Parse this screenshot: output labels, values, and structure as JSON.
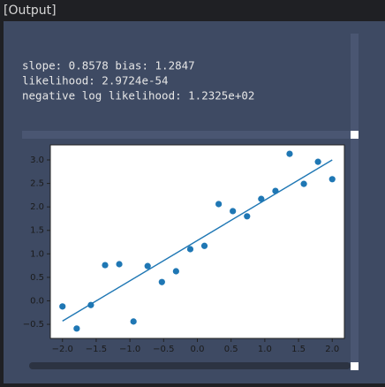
{
  "header": {
    "title": "[Output]"
  },
  "output": {
    "lines": [
      "slope: 0.8578 bias: 1.2847",
      "likelihood: 2.9724e-54",
      "negative log likelihood: 1.2325e+02"
    ]
  },
  "chart_data": {
    "type": "scatter",
    "xlim": [
      -2.18,
      2.18
    ],
    "ylim": [
      -0.8,
      3.32
    ],
    "xticks": [
      {
        "value": -2.0,
        "label": "−2.0"
      },
      {
        "value": -1.5,
        "label": "−1.5"
      },
      {
        "value": -1.0,
        "label": "−1.0"
      },
      {
        "value": -0.5,
        "label": "−0.5"
      },
      {
        "value": 0.0,
        "label": "0.0"
      },
      {
        "value": 0.5,
        "label": "0.5"
      },
      {
        "value": 1.0,
        "label": "1.0"
      },
      {
        "value": 1.5,
        "label": "1.5"
      },
      {
        "value": 2.0,
        "label": "2.0"
      }
    ],
    "yticks": [
      {
        "value": -0.5,
        "label": "−0.5"
      },
      {
        "value": 0.0,
        "label": "0.0"
      },
      {
        "value": 0.5,
        "label": "0.5"
      },
      {
        "value": 1.0,
        "label": "1.0"
      },
      {
        "value": 1.5,
        "label": "1.5"
      },
      {
        "value": 2.0,
        "label": "2.0"
      },
      {
        "value": 2.5,
        "label": "2.5"
      },
      {
        "value": 3.0,
        "label": "3.0"
      }
    ],
    "series": [
      {
        "kind": "points",
        "color": "#1f77b4",
        "x": [
          -2.0,
          -1.789,
          -1.579,
          -1.368,
          -1.158,
          -0.947,
          -0.737,
          -0.526,
          -0.316,
          -0.105,
          0.105,
          0.316,
          0.526,
          0.737,
          0.947,
          1.158,
          1.368,
          1.579,
          1.789,
          2.0
        ],
        "values": [
          -0.12,
          -0.59,
          -0.09,
          0.76,
          0.78,
          -0.44,
          0.74,
          0.4,
          0.63,
          1.1,
          1.17,
          2.06,
          1.91,
          1.8,
          2.17,
          2.34,
          3.13,
          2.49,
          2.96,
          2.59
        ]
      },
      {
        "kind": "line",
        "color": "#1f77b4",
        "x": [
          -2.0,
          2.0
        ],
        "values": [
          -0.431,
          3.0003
        ]
      }
    ]
  }
}
